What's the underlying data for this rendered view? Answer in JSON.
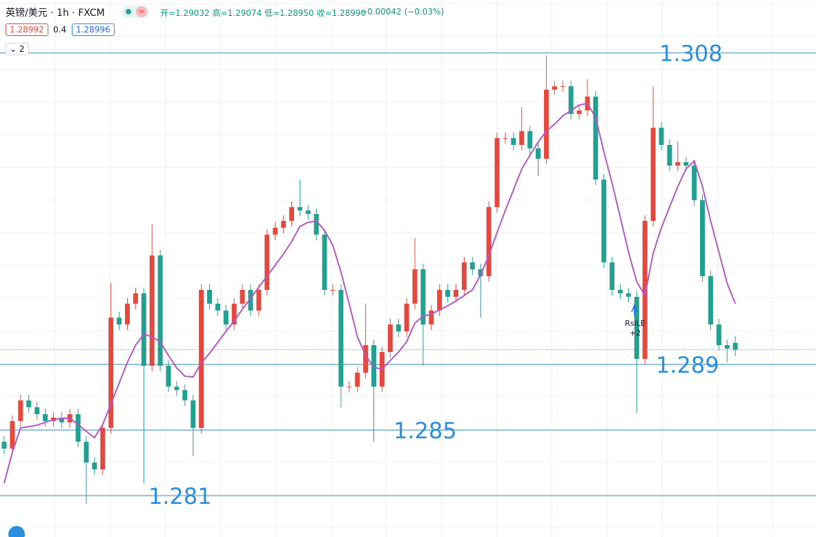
{
  "header": {
    "symbol": "英镑/美元 · 1h · FXCM",
    "ohlc": "开=1.29032 高=1.29074 低=1.28950 收=1.28990",
    "change": "−0.00042 (−0.03%)",
    "bid": "1.28992",
    "spread": "0.4",
    "ask": "1.28996",
    "collapse": "2"
  },
  "chart_data": {
    "type": "candlestick",
    "up_color": "#e5483f",
    "down_color": "#23a090",
    "ma_color": "#b456c8",
    "level_color": "#3a8cb5",
    "label_color": "#2a8fe0",
    "ylim": [
      1.27848,
      1.31123
    ],
    "levels": [
      1.308,
      1.289,
      1.285,
      1.281
    ],
    "annotation": {
      "label": "RsiLE",
      "count": "+2"
    },
    "ohlc": [
      [
        1.28429,
        1.28463,
        1.28353,
        1.28387
      ],
      [
        1.28387,
        1.28589,
        1.28353,
        1.28555
      ],
      [
        1.28555,
        1.28715,
        1.28521,
        1.28681
      ],
      [
        1.28681,
        1.28715,
        1.28605,
        1.28639
      ],
      [
        1.28639,
        1.28673,
        1.28563,
        1.28597
      ],
      [
        1.28597,
        1.28631,
        1.28521,
        1.28555
      ],
      [
        1.28555,
        1.2861,
        1.28521,
        1.28576
      ],
      [
        1.28576,
        1.2861,
        1.28513,
        1.28547
      ],
      [
        1.28547,
        1.28631,
        1.28513,
        1.28597
      ],
      [
        1.28597,
        1.28631,
        1.28395,
        1.28429
      ],
      [
        1.28429,
        1.28463,
        1.2805,
        1.28302
      ],
      [
        1.28302,
        1.28336,
        1.28226,
        1.2826
      ],
      [
        1.2826,
        1.28547,
        1.28226,
        1.28513
      ],
      [
        1.28513,
        1.29397,
        1.28479,
        1.29186
      ],
      [
        1.29186,
        1.2922,
        1.2911,
        1.29144
      ],
      [
        1.29144,
        1.29305,
        1.2911,
        1.29271
      ],
      [
        1.29271,
        1.29368,
        1.29237,
        1.29334
      ],
      [
        1.29334,
        1.29368,
        1.28176,
        1.28892
      ],
      [
        1.28892,
        1.29755,
        1.28858,
        1.29565
      ],
      [
        1.29565,
        1.29599,
        1.28858,
        1.28892
      ],
      [
        1.28892,
        1.28926,
        1.28731,
        1.28765
      ],
      [
        1.28765,
        1.28799,
        1.2871,
        1.28744
      ],
      [
        1.28744,
        1.28778,
        1.28647,
        1.28681
      ],
      [
        1.28681,
        1.28715,
        1.28344,
        1.28513
      ],
      [
        1.28513,
        1.29389,
        1.28479,
        1.29355
      ],
      [
        1.29355,
        1.29389,
        1.29237,
        1.29271
      ],
      [
        1.29271,
        1.29305,
        1.29195,
        1.29229
      ],
      [
        1.29229,
        1.29263,
        1.2911,
        1.29144
      ],
      [
        1.29144,
        1.29305,
        1.2911,
        1.29271
      ],
      [
        1.29271,
        1.29389,
        1.29237,
        1.29355
      ],
      [
        1.29355,
        1.29389,
        1.29195,
        1.29229
      ],
      [
        1.29229,
        1.29389,
        1.29195,
        1.29355
      ],
      [
        1.29355,
        1.29726,
        1.29321,
        1.29692
      ],
      [
        1.29692,
        1.29768,
        1.29658,
        1.29734
      ],
      [
        1.29734,
        1.2981,
        1.297,
        1.29776
      ],
      [
        1.29776,
        1.29894,
        1.29742,
        1.2986
      ],
      [
        1.2986,
        1.30028,
        1.29805,
        1.29839
      ],
      [
        1.29839,
        1.29873,
        1.29784,
        1.29818
      ],
      [
        1.29818,
        1.29852,
        1.29658,
        1.29692
      ],
      [
        1.29692,
        1.29726,
        1.29321,
        1.29355
      ],
      [
        1.29355,
        1.29389,
        1.29321,
        1.29355
      ],
      [
        1.29355,
        1.29389,
        1.28639,
        1.28765
      ],
      [
        1.28765,
        1.28799,
        1.28731,
        1.28765
      ],
      [
        1.28765,
        1.28884,
        1.28731,
        1.2885
      ],
      [
        1.2885,
        1.29271,
        1.28816,
        1.29018
      ],
      [
        1.29018,
        1.29052,
        1.28429,
        1.28765
      ],
      [
        1.28765,
        1.2901,
        1.28731,
        1.28976
      ],
      [
        1.28976,
        1.29178,
        1.28942,
        1.29144
      ],
      [
        1.29144,
        1.29178,
        1.29068,
        1.29102
      ],
      [
        1.29102,
        1.29305,
        1.29068,
        1.29271
      ],
      [
        1.29271,
        1.29671,
        1.29237,
        1.29481
      ],
      [
        1.29481,
        1.29515,
        1.28892,
        1.29144
      ],
      [
        1.29144,
        1.29263,
        1.2911,
        1.29229
      ],
      [
        1.29229,
        1.29389,
        1.29195,
        1.29355
      ],
      [
        1.29355,
        1.29389,
        1.29279,
        1.29313
      ],
      [
        1.29313,
        1.29389,
        1.29279,
        1.29355
      ],
      [
        1.29355,
        1.29557,
        1.29321,
        1.29523
      ],
      [
        1.29523,
        1.29557,
        1.29447,
        1.29481
      ],
      [
        1.29481,
        1.29515,
        1.29186,
        1.29439
      ],
      [
        1.29439,
        1.29894,
        1.29405,
        1.2986
      ],
      [
        1.2986,
        1.30315,
        1.29826,
        1.30281
      ],
      [
        1.30281,
        1.30315,
        1.30247,
        1.30281
      ],
      [
        1.30281,
        1.30315,
        1.30205,
        1.30239
      ],
      [
        1.30239,
        1.3047,
        1.30205,
        1.30323
      ],
      [
        1.30323,
        1.30357,
        1.30184,
        1.30218
      ],
      [
        1.30218,
        1.30252,
        1.30049,
        1.30155
      ],
      [
        1.30155,
        1.30786,
        1.30121,
        1.30576
      ],
      [
        1.30576,
        1.30631,
        1.30542,
        1.30597
      ],
      [
        1.30597,
        1.30631,
        1.30563,
        1.30597
      ],
      [
        1.30597,
        1.30631,
        1.30394,
        1.30428
      ],
      [
        1.30428,
        1.30483,
        1.30394,
        1.30449
      ],
      [
        1.30449,
        1.30639,
        1.30415,
        1.30534
      ],
      [
        1.30534,
        1.30568,
        1.29994,
        1.30028
      ],
      [
        1.30028,
        1.30062,
        1.29489,
        1.29523
      ],
      [
        1.29523,
        1.29557,
        1.29321,
        1.29355
      ],
      [
        1.29355,
        1.29389,
        1.293,
        1.29334
      ],
      [
        1.29334,
        1.29368,
        1.29279,
        1.29313
      ],
      [
        1.29313,
        1.29347,
        1.28605,
        1.28934
      ],
      [
        1.28934,
        1.2981,
        1.289,
        1.29776
      ],
      [
        1.29776,
        1.30597,
        1.29742,
        1.30344
      ],
      [
        1.30344,
        1.30378,
        1.30205,
        1.30239
      ],
      [
        1.30239,
        1.30273,
        1.30079,
        1.30113
      ],
      [
        1.30113,
        1.3026,
        1.30079,
        1.30134
      ],
      [
        1.30134,
        1.30168,
        1.30079,
        1.30113
      ],
      [
        1.30113,
        1.30147,
        1.29868,
        1.29902
      ],
      [
        1.29902,
        1.29936,
        1.29405,
        1.29439
      ],
      [
        1.29439,
        1.29473,
        1.2911,
        1.29144
      ],
      [
        1.29144,
        1.29178,
        1.28984,
        1.29018
      ],
      [
        1.29018,
        1.29052,
        1.28913,
        1.28997
      ],
      [
        1.29032,
        1.29074,
        1.2895,
        1.2899
      ]
    ],
    "ma": [
      1.28176,
      1.28365,
      1.28513,
      1.28521,
      1.2853,
      1.28547,
      1.28563,
      1.28572,
      1.28572,
      1.28534,
      1.28492,
      1.28454,
      1.28534,
      1.2866,
      1.28786,
      1.28913,
      1.29018,
      1.29085,
      1.29069,
      1.29039,
      1.28955,
      1.28879,
      1.28829,
      1.28824,
      1.28909,
      1.28968,
      1.29035,
      1.29102,
      1.29165,
      1.29237,
      1.29304,
      1.29372,
      1.29439,
      1.29506,
      1.29574,
      1.2965,
      1.29742,
      1.29767,
      1.29776,
      1.29717,
      1.29628,
      1.29464,
      1.29271,
      1.29069,
      1.28955,
      1.28883,
      1.28871,
      1.28925,
      1.28976,
      1.29039,
      1.29153,
      1.29195,
      1.29207,
      1.29233,
      1.29258,
      1.29287,
      1.29321,
      1.29355,
      1.29447,
      1.29565,
      1.29704,
      1.29839,
      1.29965,
      1.30092,
      1.30176,
      1.30256,
      1.30323,
      1.30365,
      1.30416,
      1.30449,
      1.30483,
      1.30492,
      1.30407,
      1.30197,
      1.30007,
      1.29797,
      1.29586,
      1.29405,
      1.29321,
      1.29578,
      1.29734,
      1.2986,
      1.29986,
      1.30092,
      1.30142,
      1.29986,
      1.29776,
      1.29586,
      1.29397,
      1.29271
    ]
  }
}
